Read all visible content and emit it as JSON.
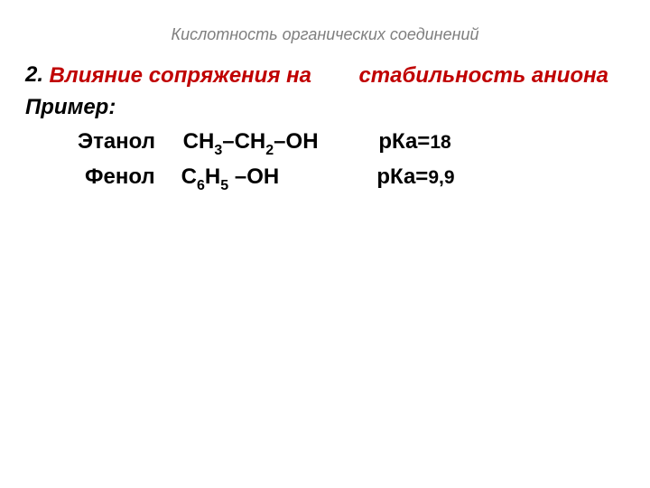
{
  "slide": {
    "title": "Кислотность органических соединений",
    "title_color": "#7f7f7f",
    "title_fontsize": 18,
    "title_style": "italic",
    "background_color": "#ffffff"
  },
  "numbered_item": {
    "number": "2.",
    "number_color": "#000000",
    "heading_line1": "Влияние сопряжения на",
    "heading_line2": "стабильность аниона",
    "heading_color": "#c00000",
    "heading_fontsize": 24,
    "heading_weight": "bold",
    "heading_style": "italic"
  },
  "example": {
    "label": "Пример:",
    "label_fontsize": 24,
    "label_weight": "bold",
    "label_style": "italic",
    "rows": [
      {
        "name": "Этанол",
        "formula_parts": [
          "СН",
          "3",
          "–СН",
          "2",
          "–ОН"
        ],
        "pka_label": "рКа=",
        "pka_value": "18"
      },
      {
        "name": "Фенол",
        "formula_parts": [
          "С",
          "6",
          "Н",
          "5",
          " –ОН"
        ],
        "pka_label": "рКа=",
        "pka_value": "9,9"
      }
    ],
    "text_color": "#000000",
    "text_fontsize": 24,
    "text_weight": "bold"
  }
}
